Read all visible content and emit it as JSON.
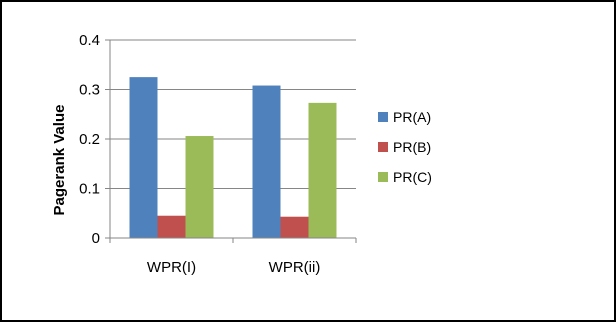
{
  "chart_data": {
    "type": "bar",
    "title": "",
    "xlabel": "",
    "ylabel": "Pagerank Value",
    "ylim": [
      0,
      0.4
    ],
    "yticks": [
      "0",
      "0.1",
      "0.2",
      "0.3",
      "0.4"
    ],
    "grid": true,
    "legend_position": "right",
    "categories": [
      "WPR(I)",
      "WPR(ii)"
    ],
    "series": [
      {
        "name": "PR(A)",
        "color": "#4F81BD",
        "values": [
          0.325,
          0.308
        ]
      },
      {
        "name": "PR(B)",
        "color": "#C0504D",
        "values": [
          0.045,
          0.043
        ]
      },
      {
        "name": "PR(C)",
        "color": "#9BBB59",
        "values": [
          0.206,
          0.273
        ]
      }
    ]
  }
}
